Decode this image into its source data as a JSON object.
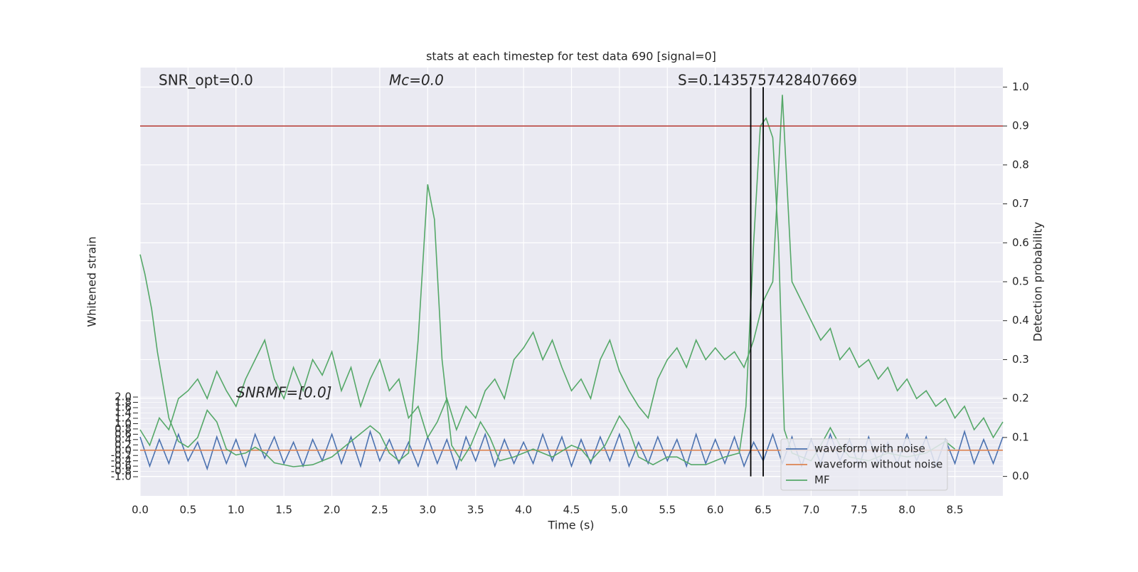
{
  "chart_data": {
    "type": "line",
    "title": "stats at each timestep for test data 690 [signal=0]",
    "xlabel": "Time (s)",
    "ylabel": "Whitened strain",
    "y2label": "Detection probability",
    "annotations": [
      "SNR_opt=0.0",
      "Mc=0.0",
      "S=0.1435757428407669",
      "SNRMF=[0.0]"
    ],
    "legend": "lower right",
    "grid": true,
    "xlim": [
      0,
      9.0
    ],
    "ylim": [
      -1.72,
      14.4
    ],
    "y2lim": [
      -0.05,
      1.05
    ],
    "xticks": [
      {
        "value": 0,
        "label": "0.0"
      },
      {
        "value": 0.5,
        "label": "0.5"
      },
      {
        "value": 1,
        "label": "1.0"
      },
      {
        "value": 1.5,
        "label": "1.5"
      },
      {
        "value": 2,
        "label": "2.0"
      },
      {
        "value": 2.5,
        "label": "2.5"
      },
      {
        "value": 3,
        "label": "3.0"
      },
      {
        "value": 3.5,
        "label": "3.5"
      },
      {
        "value": 4,
        "label": "4.0"
      },
      {
        "value": 4.5,
        "label": "4.5"
      },
      {
        "value": 5,
        "label": "5.0"
      },
      {
        "value": 5.5,
        "label": "5.5"
      },
      {
        "value": 6,
        "label": "6.0"
      },
      {
        "value": 6.5,
        "label": "6.5"
      },
      {
        "value": 7,
        "label": "7.0"
      },
      {
        "value": 7.5,
        "label": "7.5"
      },
      {
        "value": 8,
        "label": "8.0"
      },
      {
        "value": 8.5,
        "label": "8.5"
      }
    ],
    "yticks": [
      {
        "value": -1,
        "label": "-1.0"
      },
      {
        "value": -0.8,
        "label": "-0.8"
      },
      {
        "value": -0.6,
        "label": "-0.6"
      },
      {
        "value": -0.4,
        "label": "-0.4"
      },
      {
        "value": -0.2,
        "label": "-0.2"
      },
      {
        "value": 0,
        "label": "0.0"
      },
      {
        "value": 0.2,
        "label": "0.2"
      },
      {
        "value": 0.4,
        "label": "0.4"
      },
      {
        "value": 0.6,
        "label": "0.6"
      },
      {
        "value": 0.8,
        "label": "0.8"
      },
      {
        "value": 1,
        "label": "1.0"
      },
      {
        "value": 1.2,
        "label": "1.2"
      },
      {
        "value": 1.4,
        "label": "1.4"
      },
      {
        "value": 1.6,
        "label": "1.6"
      },
      {
        "value": 1.8,
        "label": "1.8"
      },
      {
        "value": 2,
        "label": "2.0"
      }
    ],
    "y2ticks": [
      {
        "value": 0,
        "label": "0.0"
      },
      0.1,
      0.2,
      0.3,
      0.4,
      0.5,
      0.6,
      0.7,
      0.8,
      0.9,
      {
        "value": 1,
        "label": "1.0"
      }
    ],
    "x": [
      0,
      0.1,
      0.2,
      0.3,
      0.4,
      0.5,
      0.6,
      0.7,
      0.8,
      0.9,
      1.0,
      1.1,
      1.2,
      1.3,
      1.4,
      1.5,
      1.6,
      1.7,
      1.8,
      1.9,
      2.0,
      2.1,
      2.2,
      2.3,
      2.4,
      2.5,
      2.6,
      2.7,
      2.8,
      2.9,
      3.0,
      3.1,
      3.2,
      3.3,
      3.4,
      3.5,
      3.6,
      3.7,
      3.8,
      3.9,
      4.0,
      4.1,
      4.2,
      4.3,
      4.4,
      4.5,
      4.6,
      4.7,
      4.8,
      4.9,
      5.0,
      5.1,
      5.2,
      5.3,
      5.4,
      5.5,
      5.6,
      5.7,
      5.8,
      5.9,
      6.0,
      6.1,
      6.2,
      6.3,
      6.4,
      6.5,
      6.6,
      6.7,
      6.8,
      6.9,
      7.0,
      7.1,
      7.2,
      7.3,
      7.4,
      7.5,
      7.6,
      7.7,
      7.8,
      7.9,
      8.0,
      8.1,
      8.2,
      8.3,
      8.4,
      8.5,
      8.6,
      8.7,
      8.8,
      8.9,
      9.0
    ],
    "series": [
      {
        "name": "waveform with noise",
        "color": "#4c72b0",
        "values": [
          0.5,
          -0.6,
          0.4,
          -0.5,
          0.6,
          -0.4,
          0.3,
          -0.7,
          0.5,
          -0.5,
          0.4,
          -0.6,
          0.6,
          -0.3,
          0.5,
          -0.5,
          0.3,
          -0.6,
          0.4,
          -0.4,
          0.6,
          -0.5,
          0.5,
          -0.6,
          0.7,
          -0.4,
          0.4,
          -0.5,
          0.3,
          -0.6,
          0.5,
          -0.5,
          0.4,
          -0.7,
          0.5,
          -0.4,
          0.6,
          -0.6,
          0.4,
          -0.5,
          0.3,
          -0.5,
          0.6,
          -0.4,
          0.5,
          -0.6,
          0.4,
          -0.5,
          0.5,
          -0.4,
          0.6,
          -0.6,
          0.3,
          -0.5,
          0.5,
          -0.4,
          0.4,
          -0.6,
          0.6,
          -0.5,
          0.4,
          -0.5,
          0.5,
          -0.6,
          0.3,
          -0.4,
          0.6,
          -0.5,
          0.5,
          -0.6,
          0.4,
          -0.5,
          0.6,
          -0.4,
          0.4,
          -0.6,
          0.5,
          -0.5,
          0.3,
          -0.5,
          0.6,
          -0.4,
          0.5,
          -0.6,
          0.4,
          -0.5,
          0.7,
          -0.5,
          0.4,
          -0.5,
          0.5
        ]
      },
      {
        "name": "waveform without noise",
        "color": "#dd8452",
        "x": [
          0,
          9.0
        ],
        "values": [
          0,
          0
        ]
      },
      {
        "name": "MF",
        "color": "#55a868",
        "axis": "y2",
        "x": [
          0,
          0.05,
          0.12,
          0.18,
          0.25,
          0.3,
          0.4,
          0.5,
          0.6,
          0.7,
          0.8,
          0.9,
          1.0,
          1.1,
          1.2,
          1.3,
          1.4,
          1.6,
          1.8,
          2.0,
          2.2,
          2.4,
          2.5,
          2.6,
          2.7,
          2.8,
          2.9,
          3.0,
          3.07,
          3.15,
          3.25,
          3.35,
          3.45,
          3.55,
          3.65,
          3.75,
          3.9,
          4.0,
          4.1,
          4.3,
          4.5,
          4.6,
          4.7,
          4.85,
          5.0,
          5.1,
          5.2,
          5.35,
          5.5,
          5.6,
          5.75,
          5.9,
          6.1,
          6.25,
          6.32,
          6.4,
          6.47,
          6.53,
          6.6,
          6.66,
          6.72,
          6.8,
          6.9,
          7.0,
          7.1,
          7.2,
          7.3,
          7.4,
          7.6,
          7.8,
          8.0,
          8.2,
          8.4,
          8.5
        ],
        "values": [
          0.57,
          0.52,
          0.43,
          0.32,
          0.22,
          0.15,
          0.09,
          0.075,
          0.1,
          0.17,
          0.14,
          0.07,
          0.055,
          0.06,
          0.075,
          0.06,
          0.035,
          0.025,
          0.03,
          0.05,
          0.09,
          0.13,
          0.11,
          0.06,
          0.04,
          0.06,
          0.35,
          0.75,
          0.66,
          0.3,
          0.08,
          0.04,
          0.08,
          0.14,
          0.1,
          0.04,
          0.05,
          0.06,
          0.07,
          0.05,
          0.08,
          0.07,
          0.04,
          0.08,
          0.155,
          0.12,
          0.05,
          0.03,
          0.05,
          0.05,
          0.03,
          0.03,
          0.05,
          0.06,
          0.18,
          0.6,
          0.9,
          0.92,
          0.87,
          0.6,
          0.12,
          0.06,
          0.05,
          0.04,
          0.08,
          0.125,
          0.08,
          0.05,
          0.04,
          0.06,
          0.05,
          0.06,
          0.09,
          0.07
        ]
      },
      {
        "color": "#55a868",
        "axis": "y2",
        "values": [
          0.12,
          0.08,
          0.15,
          0.12,
          0.2,
          0.22,
          0.25,
          0.2,
          0.27,
          0.22,
          0.18,
          0.25,
          0.3,
          0.35,
          0.25,
          0.2,
          0.28,
          0.22,
          0.3,
          0.26,
          0.32,
          0.22,
          0.28,
          0.18,
          0.25,
          0.3,
          0.22,
          0.25,
          0.15,
          0.18,
          0.1,
          0.14,
          0.2,
          0.12,
          0.18,
          0.15,
          0.22,
          0.25,
          0.2,
          0.3,
          0.33,
          0.37,
          0.3,
          0.35,
          0.28,
          0.22,
          0.25,
          0.2,
          0.3,
          0.35,
          0.27,
          0.22,
          0.18,
          0.15,
          0.25,
          0.3,
          0.33,
          0.28,
          0.35,
          0.3,
          0.33,
          0.3,
          0.32,
          0.28,
          0.35,
          0.45,
          0.5,
          0.98,
          0.5,
          0.45,
          0.4,
          0.35,
          0.38,
          0.3,
          0.33,
          0.28,
          0.3,
          0.25,
          0.28,
          0.22,
          0.25,
          0.2,
          0.22,
          0.18,
          0.2,
          0.15,
          0.18,
          0.12,
          0.15,
          0.1,
          0.14
        ]
      }
    ],
    "hline": {
      "value": 0.9,
      "color": "#b5362f",
      "axis": "y2"
    },
    "vlines": {
      "x": [
        6.37,
        6.5
      ],
      "ymin": 0,
      "ymax": 1,
      "color": "#000000",
      "axis": "y2"
    }
  }
}
